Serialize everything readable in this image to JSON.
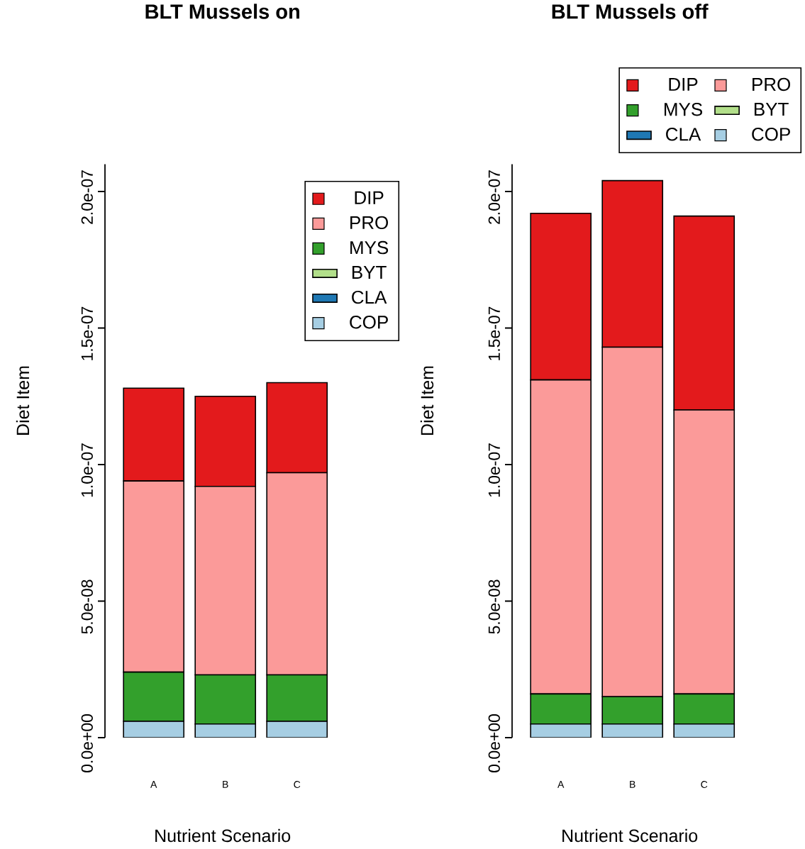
{
  "chart_data": [
    {
      "type": "bar",
      "title": "BLT Mussels on",
      "xlabel": "Nutrient Scenario",
      "ylabel": "Diet Item",
      "categories": [
        "A",
        "B",
        "C"
      ],
      "stacked": true,
      "legend": "top right",
      "ylim": [
        0,
        2.1e-07
      ],
      "yticks": [
        {
          "value": 0,
          "label": "0.0e+00"
        },
        {
          "value": 5e-08,
          "label": "5.0e-08"
        },
        {
          "value": 1e-07,
          "label": "1.0e-07"
        },
        {
          "value": 1.5e-07,
          "label": "1.5e-07"
        },
        {
          "value": 2e-07,
          "label": "2.0e-07"
        }
      ],
      "series": [
        {
          "name": "COP",
          "color": "#a6cee3",
          "values": [
            6e-09,
            5e-09,
            6e-09
          ]
        },
        {
          "name": "CLA",
          "color": "#1f78b4",
          "values": [
            null,
            null,
            null
          ]
        },
        {
          "name": "BYT",
          "color": "#b2df8a",
          "values": [
            null,
            null,
            null
          ]
        },
        {
          "name": "MYS",
          "color": "#33a02c",
          "values": [
            1.8e-08,
            1.8e-08,
            1.7e-08
          ]
        },
        {
          "name": "PRO",
          "color": "#fb9a99",
          "values": [
            7e-08,
            6.9e-08,
            7.4e-08
          ]
        },
        {
          "name": "DIP",
          "color": "#e31a1c",
          "values": [
            3.4e-08,
            3.3e-08,
            3.3e-08
          ]
        }
      ]
    },
    {
      "type": "bar",
      "title": "BLT Mussels off",
      "xlabel": "Nutrient Scenario",
      "ylabel": "Diet Item",
      "categories": [
        "A",
        "B",
        "C"
      ],
      "stacked": true,
      "legend": "top right",
      "ylim": [
        0,
        2.1e-07
      ],
      "yticks": [
        {
          "value": 0,
          "label": "0.0e+00"
        },
        {
          "value": 5e-08,
          "label": "5.0e-08"
        },
        {
          "value": 1e-07,
          "label": "1.0e-07"
        },
        {
          "value": 1.5e-07,
          "label": "1.5e-07"
        },
        {
          "value": 2e-07,
          "label": "2.0e-07"
        }
      ],
      "series": [
        {
          "name": "COP",
          "color": "#a6cee3",
          "values": [
            5e-09,
            5e-09,
            5e-09
          ]
        },
        {
          "name": "CLA",
          "color": "#1f78b4",
          "values": [
            null,
            null,
            null
          ]
        },
        {
          "name": "BYT",
          "color": "#b2df8a",
          "values": [
            null,
            null,
            null
          ]
        },
        {
          "name": "MYS",
          "color": "#33a02c",
          "values": [
            1.1e-08,
            1e-08,
            1.1e-08
          ]
        },
        {
          "name": "PRO",
          "color": "#fb9a99",
          "values": [
            1.15e-07,
            1.28e-07,
            1.04e-07
          ]
        },
        {
          "name": "DIP",
          "color": "#e31a1c",
          "values": [
            6.1e-08,
            6.1e-08,
            7.1e-08
          ]
        }
      ]
    }
  ]
}
